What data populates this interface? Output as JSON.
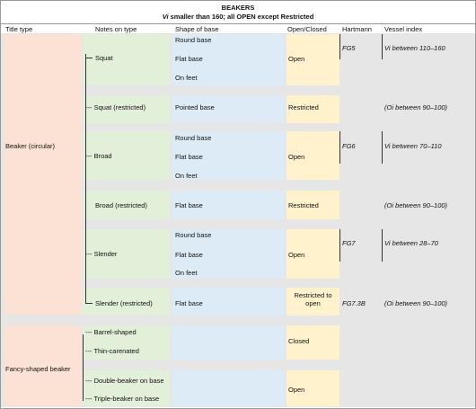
{
  "title": "BEAKERS",
  "subtitle": {
    "symbol": "Vi",
    "text": "smaller than 160; all OPEN except Restricted"
  },
  "headers": [
    "Title type",
    "Notes on type",
    "Shape of base",
    "Open/Closed",
    "Hartmann",
    "Vessel index"
  ],
  "title_types": [
    "Beaker (circular)",
    "Fancy-shaped beaker"
  ],
  "notes": [
    "Squat",
    "--- Squat (restricted)",
    "--- Broad",
    "Broad (restricted)",
    "--- Slender",
    "Slender (restricted)",
    "--- Barrel-shaped",
    "--- Thin-carenated",
    "--- Double-beaker on base",
    "--- Triple-beaker on base"
  ],
  "bases": [
    "Round base",
    "Flat base",
    "On feet",
    "Pointed base",
    "Round base",
    "Flat base",
    "On feet",
    "Flat base",
    "Round base",
    "Flat base",
    "On feet",
    "Flat base"
  ],
  "open_closed": [
    "Open",
    "Restricted",
    "Open",
    "Restricted",
    "Open",
    "Restricted to open",
    "Closed",
    "Open"
  ],
  "hartmann": [
    "FG5",
    "FG6",
    "FG7",
    "FG7.3B"
  ],
  "vessel_index": [
    "Vi between 110–160",
    "(Oi between 90–100)",
    "Vi between 70–110",
    "(Oi between 90–100)",
    "Vi between 28–70",
    "(Oi between 90–100)"
  ]
}
